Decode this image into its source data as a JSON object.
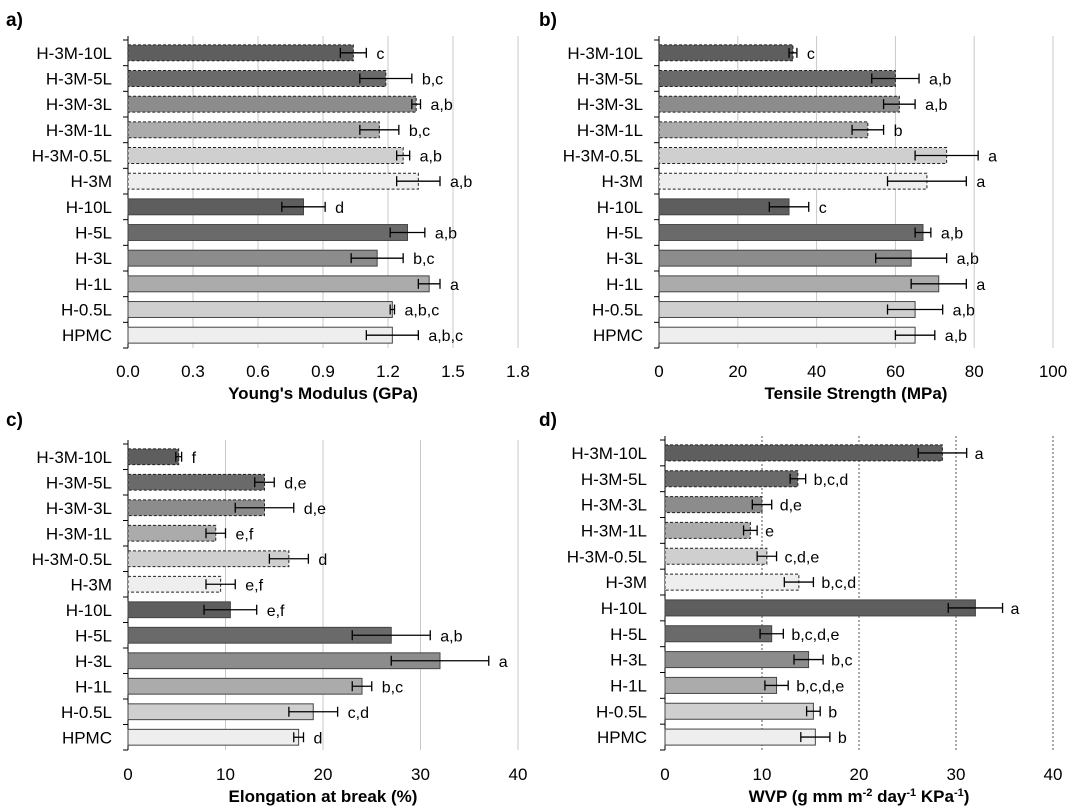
{
  "chart_data": [
    {
      "type": "bar",
      "panel_label": "a)",
      "orientation": "horizontal",
      "categories": [
        "H-3M-10L",
        "H-3M-5L",
        "H-3M-3L",
        "H-3M-1L",
        "H-3M-0.5L",
        "H-3M",
        "H-10L",
        "H-5L",
        "H-3L",
        "H-1L",
        "H-0.5L",
        "HPMC"
      ],
      "values": [
        1.04,
        1.19,
        1.33,
        1.16,
        1.27,
        1.34,
        0.81,
        1.29,
        1.15,
        1.39,
        1.22,
        1.22
      ],
      "errors": [
        0.06,
        0.12,
        0.02,
        0.09,
        0.03,
        0.1,
        0.1,
        0.08,
        0.12,
        0.05,
        0.01,
        0.12
      ],
      "significance": [
        "c",
        "b,c",
        "a,b",
        "b,c",
        "a,b",
        "a,b",
        "d",
        "a,b",
        "b,c",
        "a",
        "a,b,c",
        "a,b,c"
      ],
      "xlabel": "Young's Modulus (GPa)",
      "xlim": [
        0,
        1.8
      ],
      "xticks": [
        "0.0",
        "0.3",
        "0.6",
        "0.9",
        "1.2",
        "1.5",
        "1.8"
      ],
      "grid": "vertical"
    },
    {
      "type": "bar",
      "panel_label": "b)",
      "orientation": "horizontal",
      "categories": [
        "H-3M-10L",
        "H-3M-5L",
        "H-3M-3L",
        "H-3M-1L",
        "H-3M-0.5L",
        "H-3M",
        "H-10L",
        "H-5L",
        "H-3L",
        "H-1L",
        "H-0.5L",
        "HPMC"
      ],
      "values": [
        34,
        60,
        61,
        53,
        73,
        68,
        33,
        67,
        64,
        71,
        65,
        65
      ],
      "errors": [
        1,
        6,
        4,
        4,
        8,
        10,
        5,
        2,
        9,
        7,
        7,
        5
      ],
      "significance": [
        "c",
        "a,b",
        "a,b",
        "b",
        "a",
        "a",
        "c",
        "a,b",
        "a,b",
        "a",
        "a,b",
        "a,b"
      ],
      "xlabel": "Tensile Strength (MPa)",
      "xlim": [
        0,
        100
      ],
      "xticks": [
        "0",
        "20",
        "40",
        "60",
        "80",
        "100"
      ],
      "grid": "vertical"
    },
    {
      "type": "bar",
      "panel_label": "c)",
      "orientation": "horizontal",
      "categories": [
        "H-3M-10L",
        "H-3M-5L",
        "H-3M-3L",
        "H-3M-1L",
        "H-3M-0.5L",
        "H-3M",
        "H-10L",
        "H-5L",
        "H-3L",
        "H-1L",
        "H-0.5L",
        "HPMC"
      ],
      "values": [
        5.2,
        14,
        14,
        9,
        16.5,
        9.5,
        10.5,
        27,
        32,
        24,
        19,
        17.5
      ],
      "errors": [
        0.3,
        1,
        3,
        1,
        2,
        1.5,
        2.7,
        4,
        5,
        1,
        2.5,
        0.5
      ],
      "significance": [
        "f",
        "d,e",
        "d,e",
        "e,f",
        "d",
        "e,f",
        "e,f",
        "a,b",
        "a",
        "b,c",
        "c,d",
        "d"
      ],
      "xlabel": "Elongation at break (%)",
      "xlim": [
        0,
        40
      ],
      "xticks": [
        "0",
        "10",
        "20",
        "30",
        "40"
      ],
      "grid": "vertical"
    },
    {
      "type": "bar",
      "panel_label": "d)",
      "orientation": "horizontal",
      "categories": [
        "H-3M-10L",
        "H-3M-5L",
        "H-3M-3L",
        "H-3M-1L",
        "H-3M-0.5L",
        "H-3M",
        "H-10L",
        "H-5L",
        "H-3L",
        "H-1L",
        "H-0.5L",
        "HPMC"
      ],
      "values": [
        28.6,
        13.7,
        10,
        8.8,
        10.5,
        13.8,
        32,
        11,
        14.8,
        11.5,
        15.3,
        15.5
      ],
      "errors": [
        2.5,
        0.8,
        1,
        0.7,
        1,
        1.5,
        2.8,
        1.2,
        1.5,
        1.2,
        0.7,
        1.5
      ],
      "significance": [
        "a",
        "b,c,d",
        "d,e",
        "e",
        "c,d,e",
        "b,c,d",
        "a",
        "b,c,d,e",
        "b,c",
        "b,c,d,e",
        "b",
        "b"
      ],
      "xlabel_main": "WVP (g mm m",
      "xlabel_sup1": "-2",
      "xlabel_mid": " day",
      "xlabel_sup2": "-1",
      "xlabel_mid2": " KPa",
      "xlabel_sup3": "-1",
      "xlabel_end": ")",
      "xlim": [
        0,
        40
      ],
      "xticks": [
        "0",
        "10",
        "20",
        "30",
        "40"
      ],
      "grid": "vertical-dotted"
    }
  ],
  "colors": {
    "bar_fills": [
      "#5e5e5e",
      "#6a6a6a",
      "#8c8c8c",
      "#ababab",
      "#cfcfcf",
      "#eeeeee",
      "#5e5e5e",
      "#6a6a6a",
      "#8c8c8c",
      "#ababab",
      "#cfcfcf",
      "#eeeeee"
    ],
    "grid": "#c8c8c8",
    "axis": "#000000"
  }
}
